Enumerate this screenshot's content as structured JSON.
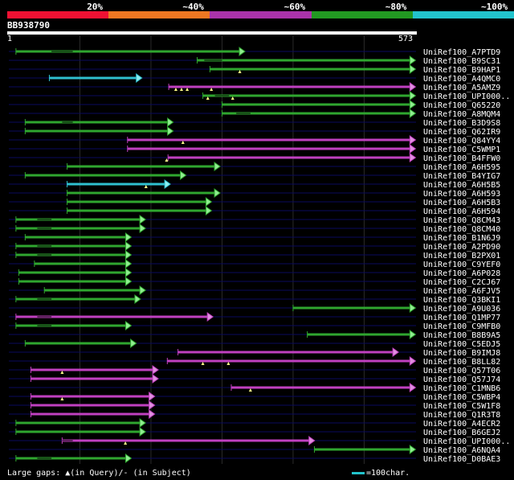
{
  "scale": {
    "segments": [
      {
        "label": "20%",
        "color": "#ee1133"
      },
      {
        "label": "~40%",
        "color": "#ee7722"
      },
      {
        "label": "~60%",
        "color": "#aa33aa"
      },
      {
        "label": "~80%",
        "color": "#229922"
      },
      {
        "label": "~100%",
        "color": "#22c3cc"
      }
    ]
  },
  "query": {
    "id": "BB938790",
    "start": "1",
    "end": "573",
    "length": 573
  },
  "colors": {
    "grid": "#2a2a2a",
    "rail": "#0a0a5e",
    "purple": "#c040c0",
    "green": "#2fa62f",
    "cyan": "#2fc0d0",
    "arrow_purple": "#e090e0",
    "arrow_green": "#90ee90",
    "arrow_cyan": "#90eeee",
    "gap_marker": "#ffff88"
  },
  "hits": [
    {
      "name": "UniRef100_A7PTD9",
      "start": 10,
      "end": 330,
      "color": "green",
      "gaps": [
        [
          60,
          90
        ]
      ]
    },
    {
      "name": "UniRef100_B9SC31",
      "start": 265,
      "end": 570,
      "color": "green",
      "gaps": [
        [
          275,
          300
        ]
      ]
    },
    {
      "name": "UniRef100_B9HAP1",
      "start": 283,
      "end": 570,
      "color": "green",
      "gaps": [],
      "markers": [
        325
      ]
    },
    {
      "name": "UniRef100_A4QMC0",
      "start": 57,
      "end": 185,
      "color": "cyan",
      "gaps": []
    },
    {
      "name": "UniRef100_A5AMZ9",
      "start": 225,
      "end": 570,
      "color": "purple",
      "gaps": [],
      "markers": [
        235,
        243,
        251,
        285
      ]
    },
    {
      "name": "UniRef100_UPI000..",
      "start": 273,
      "end": 570,
      "color": "green",
      "gaps": [
        [
          290,
          310
        ]
      ],
      "markers": [
        280,
        315
      ]
    },
    {
      "name": "UniRef100_Q65220",
      "start": 300,
      "end": 570,
      "color": "green",
      "gaps": []
    },
    {
      "name": "UniRef100_A8MQM4",
      "start": 300,
      "end": 570,
      "color": "green",
      "gaps": [
        [
          320,
          340
        ]
      ]
    },
    {
      "name": "UniRef100_B3D9S8",
      "start": 23,
      "end": 229,
      "color": "green",
      "gaps": [
        [
          75,
          90
        ]
      ]
    },
    {
      "name": "UniRef100_Q62IR9",
      "start": 23,
      "end": 229,
      "color": "green",
      "gaps": []
    },
    {
      "name": "UniRef100_Q84YY4",
      "start": 167,
      "end": 570,
      "color": "purple",
      "gaps": [],
      "markers": [
        245
      ]
    },
    {
      "name": "UniRef100_C5WMP1",
      "start": 167,
      "end": 570,
      "color": "purple",
      "gaps": []
    },
    {
      "name": "UniRef100_B4FFW0",
      "start": 224,
      "end": 570,
      "color": "purple",
      "gaps": [],
      "markers": [
        222
      ]
    },
    {
      "name": "UniRef100_A6H595",
      "start": 82,
      "end": 295,
      "color": "green",
      "gaps": []
    },
    {
      "name": "UniRef100_B4YIG7",
      "start": 23,
      "end": 247,
      "color": "green",
      "gaps": []
    },
    {
      "name": "UniRef100_A6H5B5",
      "start": 82,
      "end": 225,
      "color": "cyan",
      "gaps": [],
      "markers": [
        193
      ]
    },
    {
      "name": "UniRef100_A6H593",
      "start": 82,
      "end": 295,
      "color": "green",
      "gaps": []
    },
    {
      "name": "UniRef100_A6H5B3",
      "start": 82,
      "end": 283,
      "color": "green",
      "gaps": []
    },
    {
      "name": "UniRef100_A6H594",
      "start": 82,
      "end": 283,
      "color": "green",
      "gaps": []
    },
    {
      "name": "UniRef100_Q8CM43",
      "start": 10,
      "end": 190,
      "color": "green",
      "gaps": [
        [
          40,
          60
        ]
      ]
    },
    {
      "name": "UniRef100_Q8CM40",
      "start": 10,
      "end": 190,
      "color": "green",
      "gaps": [
        [
          40,
          60
        ]
      ]
    },
    {
      "name": "UniRef100_B1N6J9",
      "start": 23,
      "end": 170,
      "color": "green",
      "gaps": []
    },
    {
      "name": "UniRef100_A2PD90",
      "start": 10,
      "end": 170,
      "color": "green",
      "gaps": [
        [
          40,
          60
        ]
      ]
    },
    {
      "name": "UniRef100_B2PX01",
      "start": 10,
      "end": 170,
      "color": "green",
      "gaps": [
        [
          40,
          60
        ]
      ]
    },
    {
      "name": "UniRef100_C9YEF0",
      "start": 36,
      "end": 170,
      "color": "green",
      "gaps": []
    },
    {
      "name": "UniRef100_A6P028",
      "start": 14,
      "end": 170,
      "color": "green",
      "gaps": []
    },
    {
      "name": "UniRef100_C2CJ67",
      "start": 14,
      "end": 170,
      "color": "green",
      "gaps": []
    },
    {
      "name": "UniRef100_A6FJV5",
      "start": 50,
      "end": 190,
      "color": "green",
      "gaps": []
    },
    {
      "name": "UniRef100_Q3BKI1",
      "start": 10,
      "end": 183,
      "color": "green",
      "gaps": [
        [
          40,
          60
        ]
      ]
    },
    {
      "name": "UniRef100_A9U036",
      "start": 400,
      "end": 570,
      "color": "green",
      "gaps": []
    },
    {
      "name": "UniRef100_Q1MP77",
      "start": 10,
      "end": 285,
      "color": "purple",
      "gaps": [
        [
          40,
          60
        ]
      ]
    },
    {
      "name": "UniRef100_C9MFB0",
      "start": 10,
      "end": 170,
      "color": "green",
      "gaps": [
        [
          40,
          60
        ]
      ]
    },
    {
      "name": "UniRef100_B8B9A5",
      "start": 420,
      "end": 570,
      "color": "green",
      "gaps": []
    },
    {
      "name": "UniRef100_C5EDJ5",
      "start": 23,
      "end": 177,
      "color": "green",
      "gaps": []
    },
    {
      "name": "UniRef100_B9IMJ8",
      "start": 238,
      "end": 546,
      "color": "purple",
      "gaps": []
    },
    {
      "name": "UniRef100_B8LL82",
      "start": 223,
      "end": 570,
      "color": "purple",
      "gaps": [],
      "markers": [
        273,
        309
      ]
    },
    {
      "name": "UniRef100_Q57T06",
      "start": 31,
      "end": 208,
      "color": "purple",
      "gaps": [],
      "markers": [
        75
      ]
    },
    {
      "name": "UniRef100_Q57J74",
      "start": 31,
      "end": 208,
      "color": "purple",
      "gaps": []
    },
    {
      "name": "UniRef100_C1MNB6",
      "start": 313,
      "end": 570,
      "color": "purple",
      "gaps": [],
      "markers": [
        340
      ]
    },
    {
      "name": "UniRef100_C5WBP4",
      "start": 31,
      "end": 203,
      "color": "purple",
      "gaps": [],
      "markers": [
        75
      ]
    },
    {
      "name": "UniRef100_C5W1F8",
      "start": 31,
      "end": 203,
      "color": "purple",
      "gaps": []
    },
    {
      "name": "UniRef100_Q1R3T8",
      "start": 31,
      "end": 203,
      "color": "purple",
      "gaps": []
    },
    {
      "name": "UniRef100_A4ECR2",
      "start": 10,
      "end": 190,
      "color": "green",
      "gaps": []
    },
    {
      "name": "UniRef100_B6GEJ2",
      "start": 10,
      "end": 190,
      "color": "green",
      "gaps": []
    },
    {
      "name": "UniRef100_UPI000..",
      "start": 75,
      "end": 428,
      "color": "purple",
      "gaps": [
        [
          75,
          90
        ]
      ],
      "markers": [
        164
      ]
    },
    {
      "name": "UniRef100_A6NQA4",
      "start": 430,
      "end": 570,
      "color": "green",
      "gaps": []
    },
    {
      "name": "UniRef100_D0BAE3",
      "start": 10,
      "end": 170,
      "color": "green",
      "gaps": [
        [
          40,
          60
        ]
      ]
    }
  ],
  "footer": {
    "text": "Large gaps: ▲(in Query)/- (in Subject)"
  },
  "legend": {
    "text": "=100char."
  }
}
